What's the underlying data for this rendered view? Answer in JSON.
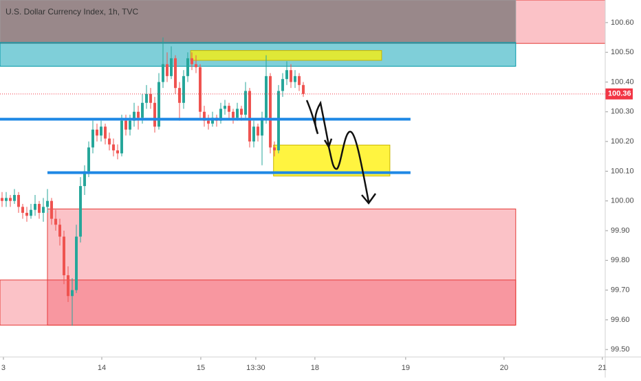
{
  "chart_data": {
    "type": "candlestick",
    "title": "U.S. Dollar Currency Index, 1h, TVC",
    "up_color": "#26a69a",
    "down_color": "#ef5350",
    "xlim": [
      0,
      146.7
    ],
    "ylim": [
      99.475,
      100.676
    ],
    "xticks": [
      {
        "value": 0.83,
        "label": "3"
      },
      {
        "value": 24.67,
        "label": "14"
      },
      {
        "value": 48.67,
        "label": "15"
      },
      {
        "value": 62,
        "label": "13:30"
      },
      {
        "value": 76.33,
        "label": "18"
      },
      {
        "value": 98.33,
        "label": "19"
      },
      {
        "value": 122.17,
        "label": "20"
      },
      {
        "value": 146,
        "label": "21"
      }
    ],
    "yticks": [
      {
        "value": 99.5,
        "label": "99.50"
      },
      {
        "value": 99.6,
        "label": "99.60"
      },
      {
        "value": 99.7,
        "label": "99.70"
      },
      {
        "value": 99.8,
        "label": "99.80"
      },
      {
        "value": 99.9,
        "label": "99.90"
      },
      {
        "value": 100,
        "label": "100.00"
      },
      {
        "value": 100.1,
        "label": "100.10"
      },
      {
        "value": 100.2,
        "label": "100.20"
      },
      {
        "value": 100.3,
        "label": "100.30"
      },
      {
        "value": 100.4,
        "label": "100.40"
      },
      {
        "value": 100.5,
        "label": "100.50"
      },
      {
        "value": 100.6,
        "label": "100.60"
      }
    ],
    "last_price": 100.36,
    "last_color": "#f23645",
    "zones": [
      {
        "color": "rgba(242,54,69,0.3)",
        "stroke": "#e53935",
        "x": [
          0,
          146.7
        ],
        "y": [
          100.53,
          100.676
        ]
      },
      {
        "color": "rgba(120,116,118,0.75)",
        "stroke": "#9e9e9e",
        "x": [
          0,
          125
        ],
        "y": [
          100.53,
          100.676
        ]
      },
      {
        "color": "rgba(0,160,180,0.5)",
        "stroke": "#0097a7",
        "x": [
          0,
          125
        ],
        "y": [
          100.453,
          100.533
        ]
      },
      {
        "color": "rgba(255,240,0,0.75)",
        "stroke": "#c8b400",
        "x": [
          46.2,
          92.5
        ],
        "y": [
          100.473,
          100.506
        ]
      },
      {
        "color": "rgba(255,240,0,0.75)",
        "stroke": "#c8b400",
        "x": [
          66.3,
          94.5
        ],
        "y": [
          100.084,
          100.188
        ]
      },
      {
        "color": "rgba(242,54,69,0.3)",
        "stroke": "#e53935",
        "x": [
          11.5,
          125
        ],
        "y": [
          99.582,
          99.973
        ]
      },
      {
        "color": "rgba(242,54,69,0.3)",
        "stroke": "#e53935",
        "x": [
          0,
          125
        ],
        "y": [
          99.582,
          99.734
        ]
      }
    ],
    "levels": [
      {
        "color": "#1e88e5",
        "x": [
          0,
          99.5
        ],
        "value": 100.275
      },
      {
        "color": "#1e88e5",
        "x": [
          11.5,
          99.5
        ],
        "value": 100.095
      }
    ],
    "ohlc": [
      [
        100.01,
        100.03,
        99.98,
        100.0
      ],
      [
        100.0,
        100.03,
        99.98,
        100.01
      ],
      [
        100.01,
        100.02,
        99.98,
        100.0
      ],
      [
        100.0,
        100.04,
        99.99,
        100.02
      ],
      [
        100.02,
        100.03,
        99.96,
        99.98
      ],
      [
        99.98,
        99.99,
        99.94,
        99.96
      ],
      [
        99.96,
        99.98,
        99.93,
        99.95
      ],
      [
        99.95,
        99.99,
        99.94,
        99.97
      ],
      [
        99.97,
        100.02,
        99.95,
        99.99
      ],
      [
        99.99,
        100.0,
        99.94,
        99.96
      ],
      [
        99.96,
        100.01,
        99.93,
        99.98
      ],
      [
        99.98,
        100.04,
        99.96,
        100.0
      ],
      [
        100.0,
        100.01,
        99.92,
        99.94
      ],
      [
        99.94,
        99.97,
        99.9,
        99.92
      ],
      [
        99.92,
        99.94,
        99.85,
        99.88
      ],
      [
        99.88,
        99.9,
        99.72,
        99.75
      ],
      [
        99.75,
        99.78,
        99.66,
        99.68
      ],
      [
        99.68,
        99.74,
        99.58,
        99.7
      ],
      [
        99.7,
        99.92,
        99.69,
        99.88
      ],
      [
        99.88,
        100.08,
        99.86,
        100.05
      ],
      [
        100.05,
        100.12,
        100.02,
        100.1
      ],
      [
        100.1,
        100.2,
        100.08,
        100.18
      ],
      [
        100.18,
        100.27,
        100.16,
        100.24
      ],
      [
        100.24,
        100.26,
        100.2,
        100.22
      ],
      [
        100.22,
        100.27,
        100.2,
        100.25
      ],
      [
        100.25,
        100.26,
        100.19,
        100.21
      ],
      [
        100.21,
        100.23,
        100.17,
        100.19
      ],
      [
        100.19,
        100.21,
        100.15,
        100.17
      ],
      [
        100.17,
        100.19,
        100.14,
        100.16
      ],
      [
        100.16,
        100.29,
        100.15,
        100.27
      ],
      [
        100.27,
        100.29,
        100.22,
        100.24
      ],
      [
        100.24,
        100.29,
        100.22,
        100.27
      ],
      [
        100.27,
        100.33,
        100.25,
        100.3
      ],
      [
        100.3,
        100.32,
        100.24,
        100.28
      ],
      [
        100.28,
        100.36,
        100.26,
        100.33
      ],
      [
        100.33,
        100.39,
        100.31,
        100.36
      ],
      [
        100.36,
        100.38,
        100.31,
        100.33
      ],
      [
        100.33,
        100.35,
        100.23,
        100.25
      ],
      [
        100.25,
        100.43,
        100.24,
        100.4
      ],
      [
        100.4,
        100.55,
        100.38,
        100.46
      ],
      [
        100.46,
        100.5,
        100.4,
        100.42
      ],
      [
        100.42,
        100.52,
        100.41,
        100.48
      ],
      [
        100.48,
        100.49,
        100.36,
        100.38
      ],
      [
        100.38,
        100.4,
        100.27,
        100.33
      ],
      [
        100.33,
        100.44,
        100.31,
        100.42
      ],
      [
        100.42,
        100.5,
        100.4,
        100.48
      ],
      [
        100.48,
        100.5,
        100.44,
        100.46
      ],
      [
        100.46,
        100.49,
        100.43,
        100.45
      ],
      [
        100.45,
        100.46,
        100.28,
        100.3
      ],
      [
        100.3,
        100.32,
        100.25,
        100.27
      ],
      [
        100.27,
        100.29,
        100.24,
        100.26
      ],
      [
        100.26,
        100.3,
        100.25,
        100.28
      ],
      [
        100.28,
        100.29,
        100.25,
        100.27
      ],
      [
        100.27,
        100.33,
        100.26,
        100.31
      ],
      [
        100.31,
        100.34,
        100.29,
        100.32
      ],
      [
        100.32,
        100.33,
        100.28,
        100.3
      ],
      [
        100.3,
        100.31,
        100.26,
        100.28
      ],
      [
        100.28,
        100.33,
        100.27,
        100.31
      ],
      [
        100.31,
        100.32,
        100.27,
        100.29
      ],
      [
        100.29,
        100.4,
        100.28,
        100.37
      ],
      [
        100.37,
        100.38,
        100.18,
        100.2
      ],
      [
        100.2,
        100.27,
        100.18,
        100.25
      ],
      [
        100.25,
        100.26,
        100.2,
        100.22
      ],
      [
        100.22,
        100.3,
        100.12,
        100.28
      ],
      [
        100.28,
        100.49,
        100.26,
        100.42
      ],
      [
        100.42,
        100.43,
        100.16,
        100.18
      ],
      [
        100.18,
        100.2,
        100.15,
        100.17
      ],
      [
        100.17,
        100.39,
        100.16,
        100.37
      ],
      [
        100.37,
        100.43,
        100.35,
        100.41
      ],
      [
        100.41,
        100.47,
        100.39,
        100.44
      ],
      [
        100.44,
        100.46,
        100.38,
        100.4
      ],
      [
        100.4,
        100.44,
        100.38,
        100.42
      ],
      [
        100.42,
        100.43,
        100.37,
        100.39
      ],
      [
        100.39,
        100.4,
        100.35,
        100.36
      ]
    ]
  }
}
